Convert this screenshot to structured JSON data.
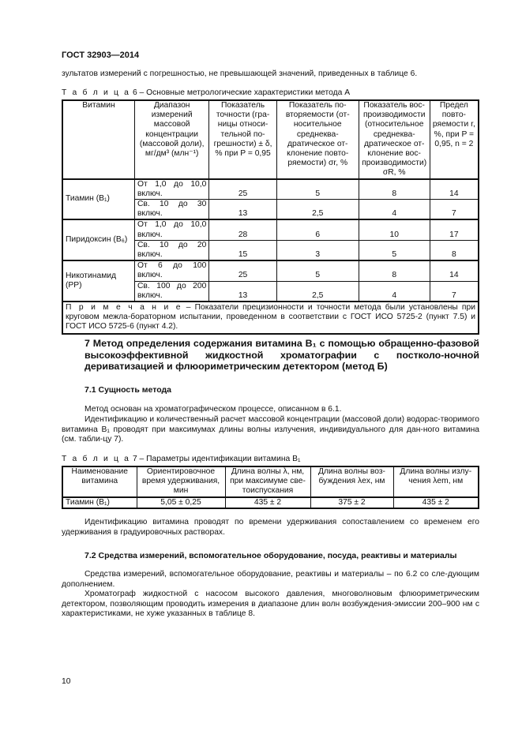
{
  "header": "ГОСТ 32903—2014",
  "intro_line": "зультатов измерений с погрешностью, не превышающей значений, приведенных в таблице 6.",
  "table6": {
    "caption_label": "Т а б л и ц а",
    "caption_text": "6 – Основные метрологические характеристики метода А",
    "headers": [
      "Витамин",
      "Диапазон измерений массовой концентрации (массовой доли), мг/дм³ (млн⁻¹)",
      "Показатель точности (гра-ницы относи-тельной по-грешности) ± δ, % при P = 0,95",
      "Показатель по-вторяемости (от-носительное среднеква-дратическое от-клонение повто-ряемости) σr, %",
      "Показатель вос-производимости (относительное среднеква-дратическое от-клонение вос-производимости) σR, %",
      "Предел повто-ряемости r, %, при P = 0,95, n = 2"
    ],
    "rows": [
      {
        "vitamin": "Тиамин (B₁)",
        "range": "От 1,0 до 10,0 включ.",
        "values": [
          "25",
          "5",
          "8",
          "14"
        ]
      },
      {
        "vitamin": "",
        "range": "Св. 10 до 30 включ.",
        "values": [
          "13",
          "2,5",
          "4",
          "7"
        ]
      },
      {
        "vitamin": "Пиридоксин (B₆)",
        "range": "От 1,0 до 10,0 включ.",
        "values": [
          "28",
          "6",
          "10",
          "17"
        ]
      },
      {
        "vitamin": "",
        "range": "Св. 10 до 20 включ.",
        "values": [
          "15",
          "3",
          "5",
          "8"
        ]
      },
      {
        "vitamin": "Никотинамид (PP)",
        "range": "От 6 до 100 включ.",
        "values": [
          "25",
          "5",
          "8",
          "14"
        ]
      },
      {
        "vitamin": "",
        "range": "Св. 100 до 200 включ.",
        "values": [
          "13",
          "2,5",
          "4",
          "7"
        ]
      }
    ],
    "note_label": "П р и м е ч а н и е",
    "note_text": " – Показатели прецизионности и точности метода были установлены при круговом межла-бораторном испытании, проведенном в соответствии с ГОСТ ИСО 5725-2 (пункт 7.5) и ГОСТ ИСО 5725-6 (пункт 4.2)."
  },
  "section7": {
    "title": "7 Метод определения содержания витамина B₁ с помощью обращенно-фазовой высокоэффективной жидкостной хроматографии с постколо-ночной дериватизацией и флюориметрическим детектором (метод Б)"
  },
  "s71": {
    "title": "7.1 Сущность метода",
    "p1": "Метод основан на хроматографическом процессе, описанном в 6.1.",
    "p2": "Идентификацию и количественный расчет массовой концентрации (массовой доли) водорас-творимого витамина B₁ проводят при максимумах длины волны излучения, индивидуального для дан-ного витамина (см. табли-цу 7)."
  },
  "table7": {
    "caption_label": "Т а б л и ц а",
    "caption_text": "7 – Параметры идентификации витамина B₁",
    "headers": [
      "Наименование витамина",
      "Ориентировочное время удерживания, мин",
      "Длина волны λ, нм, при максимуме све-тоиспускания",
      "Длина волны воз-буждения λex, нм",
      "Длина волны излу-чения λem, нм"
    ],
    "row": [
      "Тиамин (B₁)",
      "5,05 ± 0,25",
      "435 ± 2",
      "375 ± 2",
      "435 ± 2"
    ]
  },
  "after_t7": "Идентификацию витамина проводят по времени удерживания сопоставлением со временем его удерживания в градуировочных растворах.",
  "s72": {
    "title": "7.2 Средства измерений, вспомогательное оборудование, посуда, реактивы и материалы",
    "p1": "Средства измерений, вспомогательное оборудование, реактивы и материалы – по 6.2 со сле-дующим дополнением.",
    "p2": "Хроматограф жидкостной с насосом высокого давления, многоволновым флюориметрическим детектором, позволяющим проводить измерения в диапазоне длин волн возбуждения-эмиссии 200–900 нм с характеристиками, не хуже указанных в таблице 8."
  },
  "page_number": "10"
}
